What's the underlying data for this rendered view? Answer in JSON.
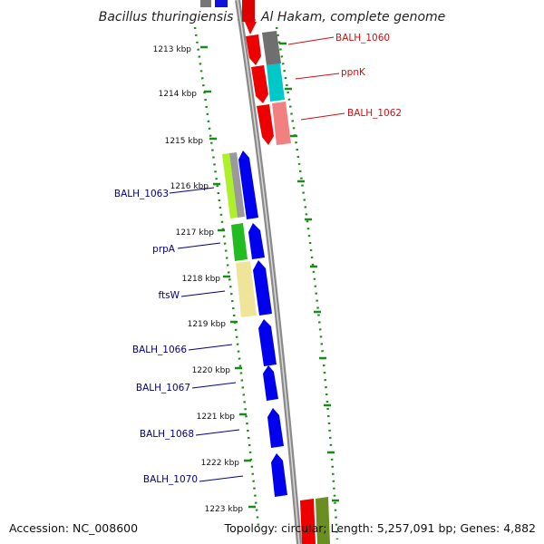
{
  "title": "Bacillus thuringiensis str. Al Hakam, complete genome",
  "footer": {
    "accession": "Accession: NC_008600",
    "summary": "Topology: circular; Length: 5,257,091 bp; Genes: 4,882"
  },
  "colors": {
    "backbone": "#8a8a8a",
    "tick": "#1a8a1a",
    "forward_label": "#cc1111",
    "reverse_label": "#00008b"
  },
  "chart_data": {
    "type": "genome-map",
    "ticks": [
      "1213 kbp",
      "1214 kbp",
      "1215 kbp",
      "1216 kbp",
      "1217 kbp",
      "1218 kbp",
      "1219 kbp",
      "1220 kbp",
      "1221 kbp",
      "1222 kbp",
      "1223 kbp"
    ],
    "forward_labels": [
      {
        "name": "BALH_1060",
        "color": "#cc1111"
      },
      {
        "name": "ppnK",
        "color": "#cc1111"
      },
      {
        "name": "BALH_1062",
        "color": "#cc1111"
      }
    ],
    "reverse_labels": [
      {
        "name": "BALH_1063",
        "color": "#00008b"
      },
      {
        "name": "prpA",
        "color": "#00008b"
      },
      {
        "name": "ftsW",
        "color": "#00008b"
      },
      {
        "name": "BALH_1066",
        "color": "#00008b"
      },
      {
        "name": "BALH_1067",
        "color": "#00008b"
      },
      {
        "name": "BALH_1068",
        "color": "#00008b"
      },
      {
        "name": "BALH_1070",
        "color": "#00008b"
      }
    ]
  }
}
